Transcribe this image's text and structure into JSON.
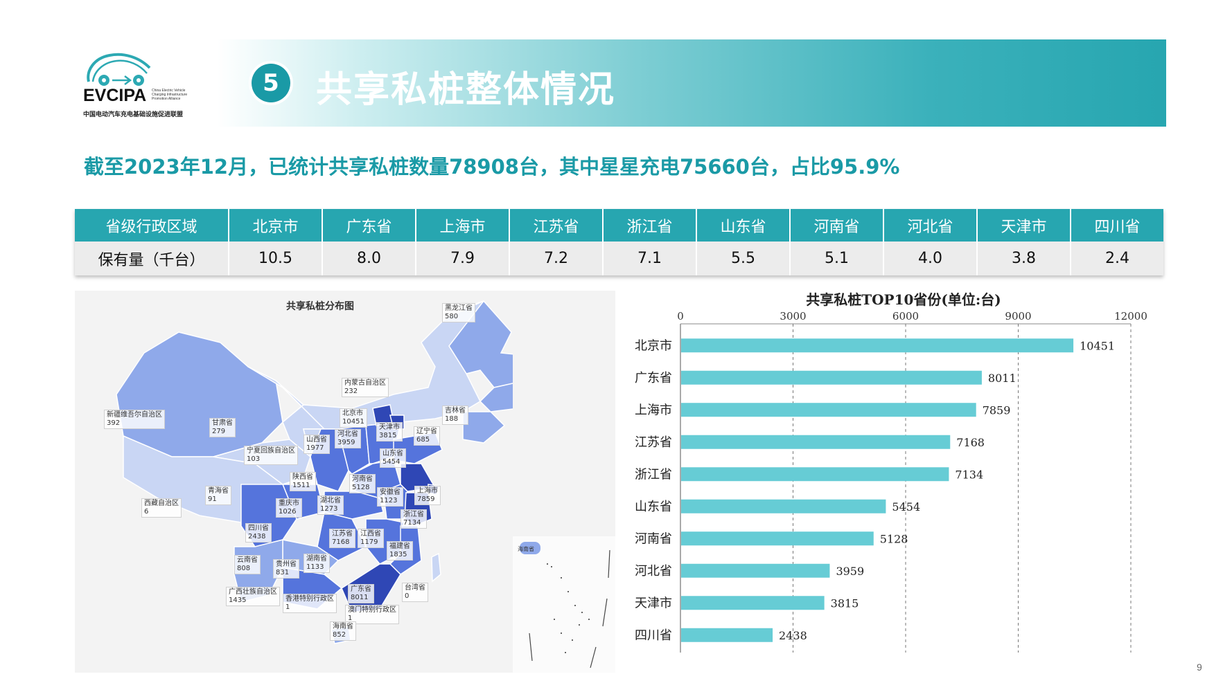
{
  "logo": {
    "brand": "EVCIPA",
    "brand_en": "China Electric Vehicle Charging Infrastructure Promotion Alliance",
    "brand_cn": "中国电动汽车充电基础设施促进联盟"
  },
  "banner": {
    "number": "5",
    "title": "共享私桩整体情况"
  },
  "headline": "截至2023年12月，已统计共享私桩数量78908台，其中星星充电75660台，占比95.9%",
  "table": {
    "headers": [
      "省级行政区域",
      "北京市",
      "广东省",
      "上海市",
      "江苏省",
      "浙江省",
      "山东省",
      "河南省",
      "河北省",
      "天津市",
      "四川省"
    ],
    "row_label": "保有量（千台）",
    "values": [
      "10.5",
      "8.0",
      "7.9",
      "7.2",
      "7.1",
      "5.5",
      "5.1",
      "4.0",
      "3.8",
      "2.4"
    ]
  },
  "map": {
    "title": "共享私桩分布图",
    "labels": [
      {
        "name": "黑龙江省",
        "value": "580"
      },
      {
        "name": "内蒙古自治区",
        "value": "232"
      },
      {
        "name": "吉林省",
        "value": "188"
      },
      {
        "name": "新疆维吾尔自治区",
        "value": "392"
      },
      {
        "name": "甘肃省",
        "value": "279"
      },
      {
        "name": "北京市",
        "value": "10451"
      },
      {
        "name": "天津市",
        "value": "3815"
      },
      {
        "name": "辽宁省",
        "value": "685"
      },
      {
        "name": "河北省",
        "value": "3959"
      },
      {
        "name": "山西省",
        "value": "1977"
      },
      {
        "name": "宁夏回族自治区",
        "value": "103"
      },
      {
        "name": "山东省",
        "value": "5454"
      },
      {
        "name": "陕西省",
        "value": "1511"
      },
      {
        "name": "河南省",
        "value": "5128"
      },
      {
        "name": "青海省",
        "value": "91"
      },
      {
        "name": "上海市",
        "value": "7859"
      },
      {
        "name": "安徽省",
        "value": "1123"
      },
      {
        "name": "西藏自治区",
        "value": "6"
      },
      {
        "name": "重庆市",
        "value": "1026"
      },
      {
        "name": "湖北省",
        "value": "1273"
      },
      {
        "name": "浙江省",
        "value": "7134"
      },
      {
        "name": "四川省",
        "value": "2438"
      },
      {
        "name": "江苏省",
        "value": "7168"
      },
      {
        "name": "江西省",
        "value": "1179"
      },
      {
        "name": "福建省",
        "value": "1835"
      },
      {
        "name": "云南省",
        "value": "808"
      },
      {
        "name": "贵州省",
        "value": "831"
      },
      {
        "name": "湖南省",
        "value": "1133"
      },
      {
        "name": "台湾省",
        "value": "0"
      },
      {
        "name": "广东省",
        "value": "8011"
      },
      {
        "name": "广西壮族自治区",
        "value": "1435"
      },
      {
        "name": "香港特别行政区",
        "value": "1"
      },
      {
        "name": "澳门特别行政区",
        "value": "1"
      },
      {
        "name": "海南省",
        "value": "852"
      }
    ],
    "inset_label": "海南省",
    "colors": {
      "light": "#c9d6f4",
      "mid": "#8fa9ea",
      "deep": "#5574dc",
      "darkest": "#2f47b5"
    }
  },
  "chart_data": {
    "type": "bar",
    "orientation": "horizontal",
    "title": "共享私桩TOP10省份(单位:台)",
    "categories": [
      "北京市",
      "广东省",
      "上海市",
      "江苏省",
      "浙江省",
      "山东省",
      "河南省",
      "河北省",
      "天津市",
      "四川省"
    ],
    "values": [
      10451,
      8011,
      7859,
      7168,
      7134,
      5454,
      5128,
      3959,
      3815,
      2438
    ],
    "xlim": [
      0,
      12000
    ],
    "xticks": [
      0,
      3000,
      6000,
      9000,
      12000
    ],
    "xaxis_position": "top",
    "grid": "vertical dashed",
    "bar_color": "#66ccd5"
  },
  "page_number": "9"
}
